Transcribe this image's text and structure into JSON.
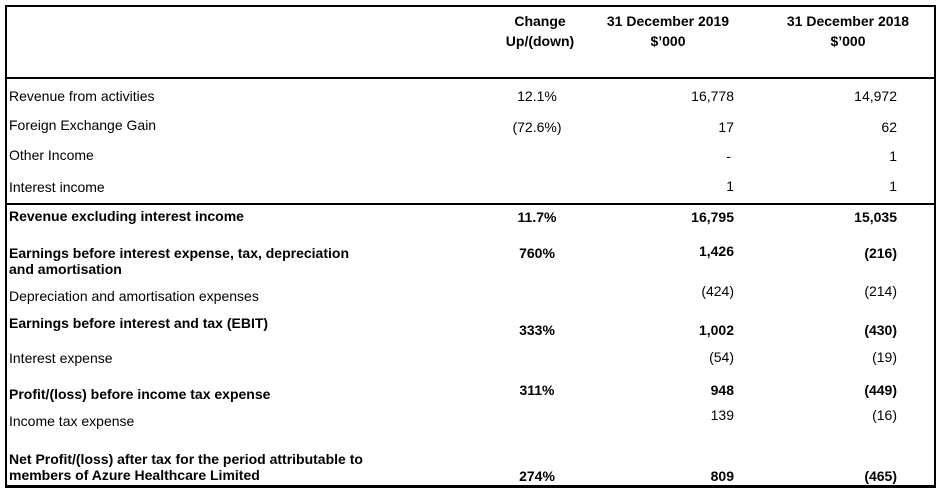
{
  "header": {
    "col1": [
      "Change",
      "Up/(down)"
    ],
    "col2": [
      "31 December 2019",
      "$’000"
    ],
    "col3": [
      "31 December 2018",
      "$’000"
    ]
  },
  "rows": [
    {
      "label": "Revenue from activities",
      "change": "12.1%",
      "y2019": "16,778",
      "y2018": "14,972"
    },
    {
      "label": "Foreign Exchange Gain",
      "change": "(72.6%)",
      "y2019": "17",
      "y2018": "62"
    },
    {
      "label": "Other Income",
      "change": "",
      "y2019": "-",
      "y2018": "1"
    },
    {
      "label": "Interest income",
      "change": "",
      "y2019": "1",
      "y2018": "1"
    },
    {
      "label": "Revenue excluding interest income",
      "change": "11.7%",
      "y2019": "16,795",
      "y2018": "15,035"
    },
    {
      "label": [
        "Earnings before interest expense, tax, depreciation",
        "and amortisation"
      ],
      "change": "760%",
      "y2019": "1,426",
      "y2018": "(216)"
    },
    {
      "label": "Depreciation and amortisation expenses",
      "change": "",
      "y2019": "(424)",
      "y2018": "(214)"
    },
    {
      "label": "Earnings before interest and tax (EBIT)",
      "change": "333%",
      "y2019": "1,002",
      "y2018": "(430)"
    },
    {
      "label": "Interest expense",
      "change": "",
      "y2019": "(54)",
      "y2018": "(19)"
    },
    {
      "label": "Profit/(loss) before income tax expense",
      "change": "311%",
      "y2019": "948",
      "y2018": "(449)"
    },
    {
      "label": "Income tax expense",
      "change": "",
      "y2019": "139",
      "y2018": "(16)"
    },
    {
      "label": [
        "Net Profit/(loss) after tax for the period attributable to",
        "members of Azure Healthcare Limited"
      ],
      "change": "274%",
      "y2019": "809",
      "y2018": "(465)"
    }
  ]
}
